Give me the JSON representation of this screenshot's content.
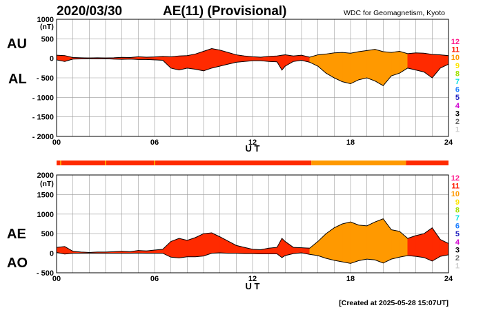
{
  "header": {
    "date": "2020/03/30",
    "title": "AE(11) (Provisional)",
    "source": "WDC for Geomagnetism, Kyoto"
  },
  "footer": {
    "created": "[Created at 2025-05-28 15:07UT]"
  },
  "colors": {
    "red": "#ff2a00",
    "orange": "#ff9900",
    "axis": "#000000",
    "grid": "#999999"
  },
  "legend": {
    "levels": [
      {
        "label": "12",
        "color": "#ff1a8c"
      },
      {
        "label": "11",
        "color": "#ff1a00"
      },
      {
        "label": "10",
        "color": "#ff9900"
      },
      {
        "label": "9",
        "color": "#ffe500"
      },
      {
        "label": "8",
        "color": "#a0e000"
      },
      {
        "label": "7",
        "color": "#00e0e0"
      },
      {
        "label": "6",
        "color": "#1e7fff"
      },
      {
        "label": "5",
        "color": "#2020c0"
      },
      {
        "label": "4",
        "color": "#d000d0"
      },
      {
        "label": "3",
        "color": "#000000"
      },
      {
        "label": "2",
        "color": "#666666"
      },
      {
        "label": "1",
        "color": "#cccccc"
      }
    ]
  },
  "chart_data": [
    {
      "type": "area",
      "name": "AU/AL",
      "series_labels": [
        "AU",
        "AL"
      ],
      "yunit": "(nT)",
      "xlabel": "U T",
      "ylim": [
        -2000,
        1000
      ],
      "yticks": [
        1000,
        500,
        0,
        -500,
        -1000,
        -1500,
        -2000
      ],
      "ytick_labels": [
        "1000",
        "500",
        "0",
        "- 500",
        "- 1000",
        "- 1500",
        "- 2000"
      ],
      "xlim": [
        0,
        24
      ],
      "xticks": [
        0,
        6,
        12,
        18,
        24
      ],
      "xtick_labels": [
        "00",
        "06",
        "12",
        "18",
        "24"
      ],
      "x": [
        0,
        0.5,
        1,
        1.5,
        2,
        2.5,
        3,
        3.5,
        4,
        4.5,
        5,
        5.5,
        6,
        6.5,
        7,
        7.5,
        8,
        8.5,
        9,
        9.5,
        10,
        10.5,
        11,
        11.5,
        12,
        12.5,
        13,
        13.5,
        13.8,
        14,
        14.5,
        15,
        15.5,
        16,
        16.5,
        17,
        17.5,
        18,
        18.5,
        19,
        19.5,
        20,
        20.5,
        21,
        21.5,
        22,
        22.5,
        23,
        23.5,
        24
      ],
      "au": [
        80,
        70,
        20,
        15,
        10,
        15,
        10,
        15,
        25,
        20,
        40,
        30,
        35,
        50,
        40,
        60,
        70,
        110,
        180,
        250,
        210,
        150,
        90,
        60,
        40,
        30,
        50,
        60,
        80,
        90,
        60,
        80,
        30,
        90,
        110,
        140,
        150,
        130,
        170,
        200,
        230,
        170,
        150,
        180,
        120,
        140,
        130,
        100,
        90,
        70
      ],
      "al": [
        -40,
        -80,
        -20,
        -15,
        -10,
        -15,
        -10,
        -20,
        -25,
        -20,
        -30,
        -30,
        -40,
        -50,
        -250,
        -300,
        -250,
        -280,
        -320,
        -250,
        -200,
        -150,
        -100,
        -80,
        -60,
        -60,
        -80,
        -90,
        -300,
        -200,
        -80,
        -50,
        -100,
        -200,
        -380,
        -500,
        -600,
        -650,
        -550,
        -500,
        -580,
        -700,
        -450,
        -380,
        -250,
        -300,
        -350,
        -500,
        -250,
        -150
      ],
      "activity_bands": [
        {
          "from": 0,
          "to": 15.6,
          "level": "11"
        },
        {
          "from": 15.6,
          "to": 21.4,
          "level": "10"
        },
        {
          "from": 21.4,
          "to": 24,
          "level": "11"
        }
      ]
    },
    {
      "type": "area",
      "name": "AE/AO",
      "series_labels": [
        "AE",
        "AO"
      ],
      "yunit": "(nT)",
      "xlabel": "U T",
      "ylim": [
        -500,
        2000
      ],
      "yticks": [
        2000,
        1500,
        1000,
        500,
        0,
        -500
      ],
      "ytick_labels": [
        "2000",
        "1500",
        "1000",
        "500",
        "0",
        "- 500"
      ],
      "xlim": [
        0,
        24
      ],
      "xticks": [
        0,
        6,
        12,
        18,
        24
      ],
      "xtick_labels": [
        "00",
        "06",
        "12",
        "18",
        "24"
      ],
      "x": [
        0,
        0.5,
        1,
        1.5,
        2,
        2.5,
        3,
        3.5,
        4,
        4.5,
        5,
        5.5,
        6,
        6.5,
        7,
        7.5,
        8,
        8.5,
        9,
        9.5,
        10,
        10.5,
        11,
        11.5,
        12,
        12.5,
        13,
        13.5,
        13.8,
        14,
        14.5,
        15,
        15.5,
        16,
        16.5,
        17,
        17.5,
        18,
        18.5,
        19,
        19.5,
        20,
        20.5,
        21,
        21.5,
        22,
        22.5,
        23,
        23.5,
        24
      ],
      "ae": [
        150,
        170,
        50,
        30,
        20,
        30,
        30,
        40,
        50,
        40,
        70,
        60,
        80,
        100,
        300,
        380,
        330,
        400,
        500,
        520,
        420,
        310,
        200,
        150,
        100,
        90,
        130,
        150,
        380,
        300,
        150,
        140,
        130,
        300,
        500,
        650,
        750,
        800,
        720,
        700,
        800,
        880,
        600,
        560,
        380,
        450,
        500,
        650,
        350,
        250
      ],
      "ao": [
        20,
        -20,
        0,
        0,
        0,
        0,
        0,
        0,
        0,
        0,
        5,
        0,
        0,
        0,
        -100,
        -120,
        -90,
        -90,
        -70,
        0,
        10,
        0,
        0,
        -10,
        -10,
        -15,
        -15,
        -15,
        -110,
        -60,
        -10,
        10,
        -30,
        -60,
        -130,
        -180,
        -220,
        -260,
        -190,
        -150,
        -170,
        -250,
        -150,
        -100,
        -60,
        -80,
        -110,
        -200,
        -80,
        -40
      ],
      "activity_bands": [
        {
          "from": 0,
          "to": 15.6,
          "level": "11"
        },
        {
          "from": 15.6,
          "to": 21.4,
          "level": "10"
        },
        {
          "from": 21.4,
          "to": 24,
          "level": "11"
        }
      ]
    }
  ],
  "strip": {
    "segments": [
      {
        "from": 0,
        "to": 15.6,
        "level": "11"
      },
      {
        "from": 15.6,
        "to": 21.4,
        "level": "10"
      },
      {
        "from": 21.4,
        "to": 24,
        "level": "11"
      }
    ],
    "markers": [
      0.25,
      3,
      6
    ]
  }
}
